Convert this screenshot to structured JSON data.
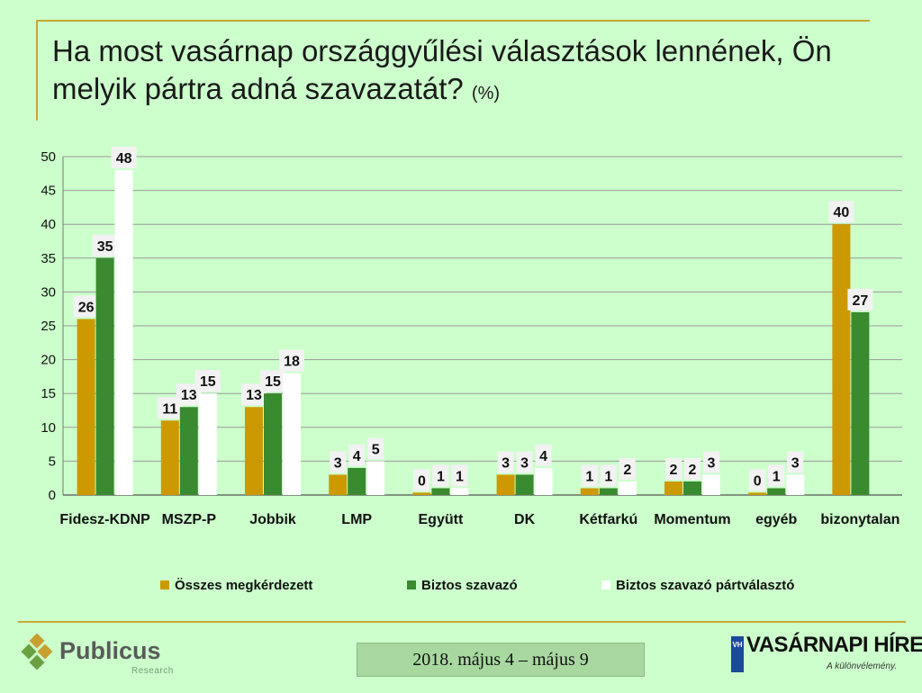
{
  "title": {
    "main": "Ha most vasárnap országgyűlési választások lennének, Ön melyik pártra adná szavazatát?",
    "unit": "(%)"
  },
  "chart_data": {
    "type": "bar",
    "categories": [
      "Fidesz-KDNP",
      "MSZP-P",
      "Jobbik",
      "LMP",
      "Együtt",
      "DK",
      "Kétfarkú",
      "Momentum",
      "egyéb",
      "bizonytalan"
    ],
    "series": [
      {
        "name": "Összes megkérdezett",
        "color": "#cc9900",
        "values": [
          26,
          11,
          13,
          3,
          0,
          3,
          1,
          2,
          0,
          40
        ],
        "labels": [
          "26",
          "11",
          "13",
          "3",
          "0",
          "3",
          "1",
          "2",
          "0",
          "40"
        ]
      },
      {
        "name": "Biztos szavazó",
        "color": "#3a8a30",
        "values": [
          35,
          13,
          15,
          4,
          1,
          3,
          1,
          2,
          1,
          27
        ],
        "labels": [
          "35",
          "13",
          "15",
          "4",
          "1",
          "3",
          "1",
          "2",
          "1",
          "27"
        ]
      },
      {
        "name": "Biztos szavazó pártválasztó",
        "color": "#ffffff",
        "values": [
          48,
          15,
          18,
          5,
          1,
          4,
          2,
          3,
          3,
          null
        ],
        "labels": [
          "48",
          "15",
          "18",
          "5",
          "1",
          "4",
          "2",
          "3",
          "3",
          ""
        ]
      }
    ],
    "ylim": [
      0,
      50
    ],
    "yticks": [
      0,
      5,
      10,
      15,
      20,
      25,
      30,
      35,
      40,
      45,
      50
    ],
    "grid": true,
    "legend_position": "bottom"
  },
  "footer": {
    "date": "2018. május 4 – május 9",
    "left_logo": {
      "name": "Publicus",
      "sub": "Research"
    },
    "right_logo": {
      "mark": "VH",
      "brand": "VASÁRNAPI HÍREK",
      "tagline": "A különvélemény."
    }
  }
}
